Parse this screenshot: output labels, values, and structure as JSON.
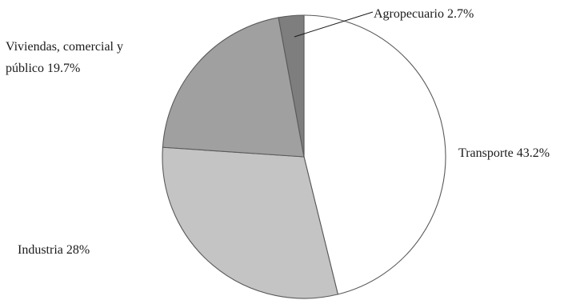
{
  "chart_data": {
    "type": "pie",
    "title": "",
    "categories": [
      "Transporte",
      "Industria",
      "Viviendas, comercial y público",
      "Agropecuario"
    ],
    "values": [
      43.2,
      28,
      19.7,
      2.7
    ],
    "unit": "%",
    "start_angle": "12 o'clock",
    "direction": "clockwise",
    "legend": "none (labels next to slices)",
    "colors": [
      "#ffffff",
      "#c4c4c4",
      "#a0a0a0",
      "#7e7e7e"
    ],
    "labels": [
      {
        "lines": [
          "Transporte 43.2%"
        ]
      },
      {
        "lines": [
          "Industria 28%"
        ]
      },
      {
        "lines": [
          "Viviendas, comercial y",
          "público 19.7%"
        ]
      },
      {
        "lines": [
          "Agropecuario 2.7%"
        ]
      }
    ]
  }
}
